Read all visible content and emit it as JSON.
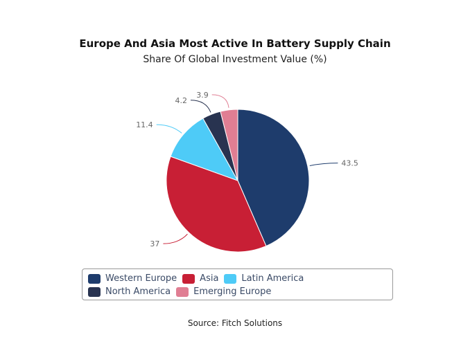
{
  "chart_data": {
    "type": "pie",
    "title": "Europe And Asia Most Active In Battery Supply Chain",
    "subtitle": "Share Of Global Investment Value (%)",
    "categories": [
      "Western Europe",
      "Asia",
      "Latin America",
      "North America",
      "Emerging Europe"
    ],
    "values": [
      43.5,
      37,
      11.4,
      4.2,
      3.9
    ],
    "value_labels": [
      "43.5",
      "37",
      "11.4",
      "4.2",
      "3.9"
    ],
    "colors": [
      "#1e3c6c",
      "#c81f35",
      "#4ecbf7",
      "#283350",
      "#e07e93"
    ],
    "start_angle": "top, clockwise",
    "legend_position": "bottom",
    "source": "Source: Fitch Solutions"
  }
}
